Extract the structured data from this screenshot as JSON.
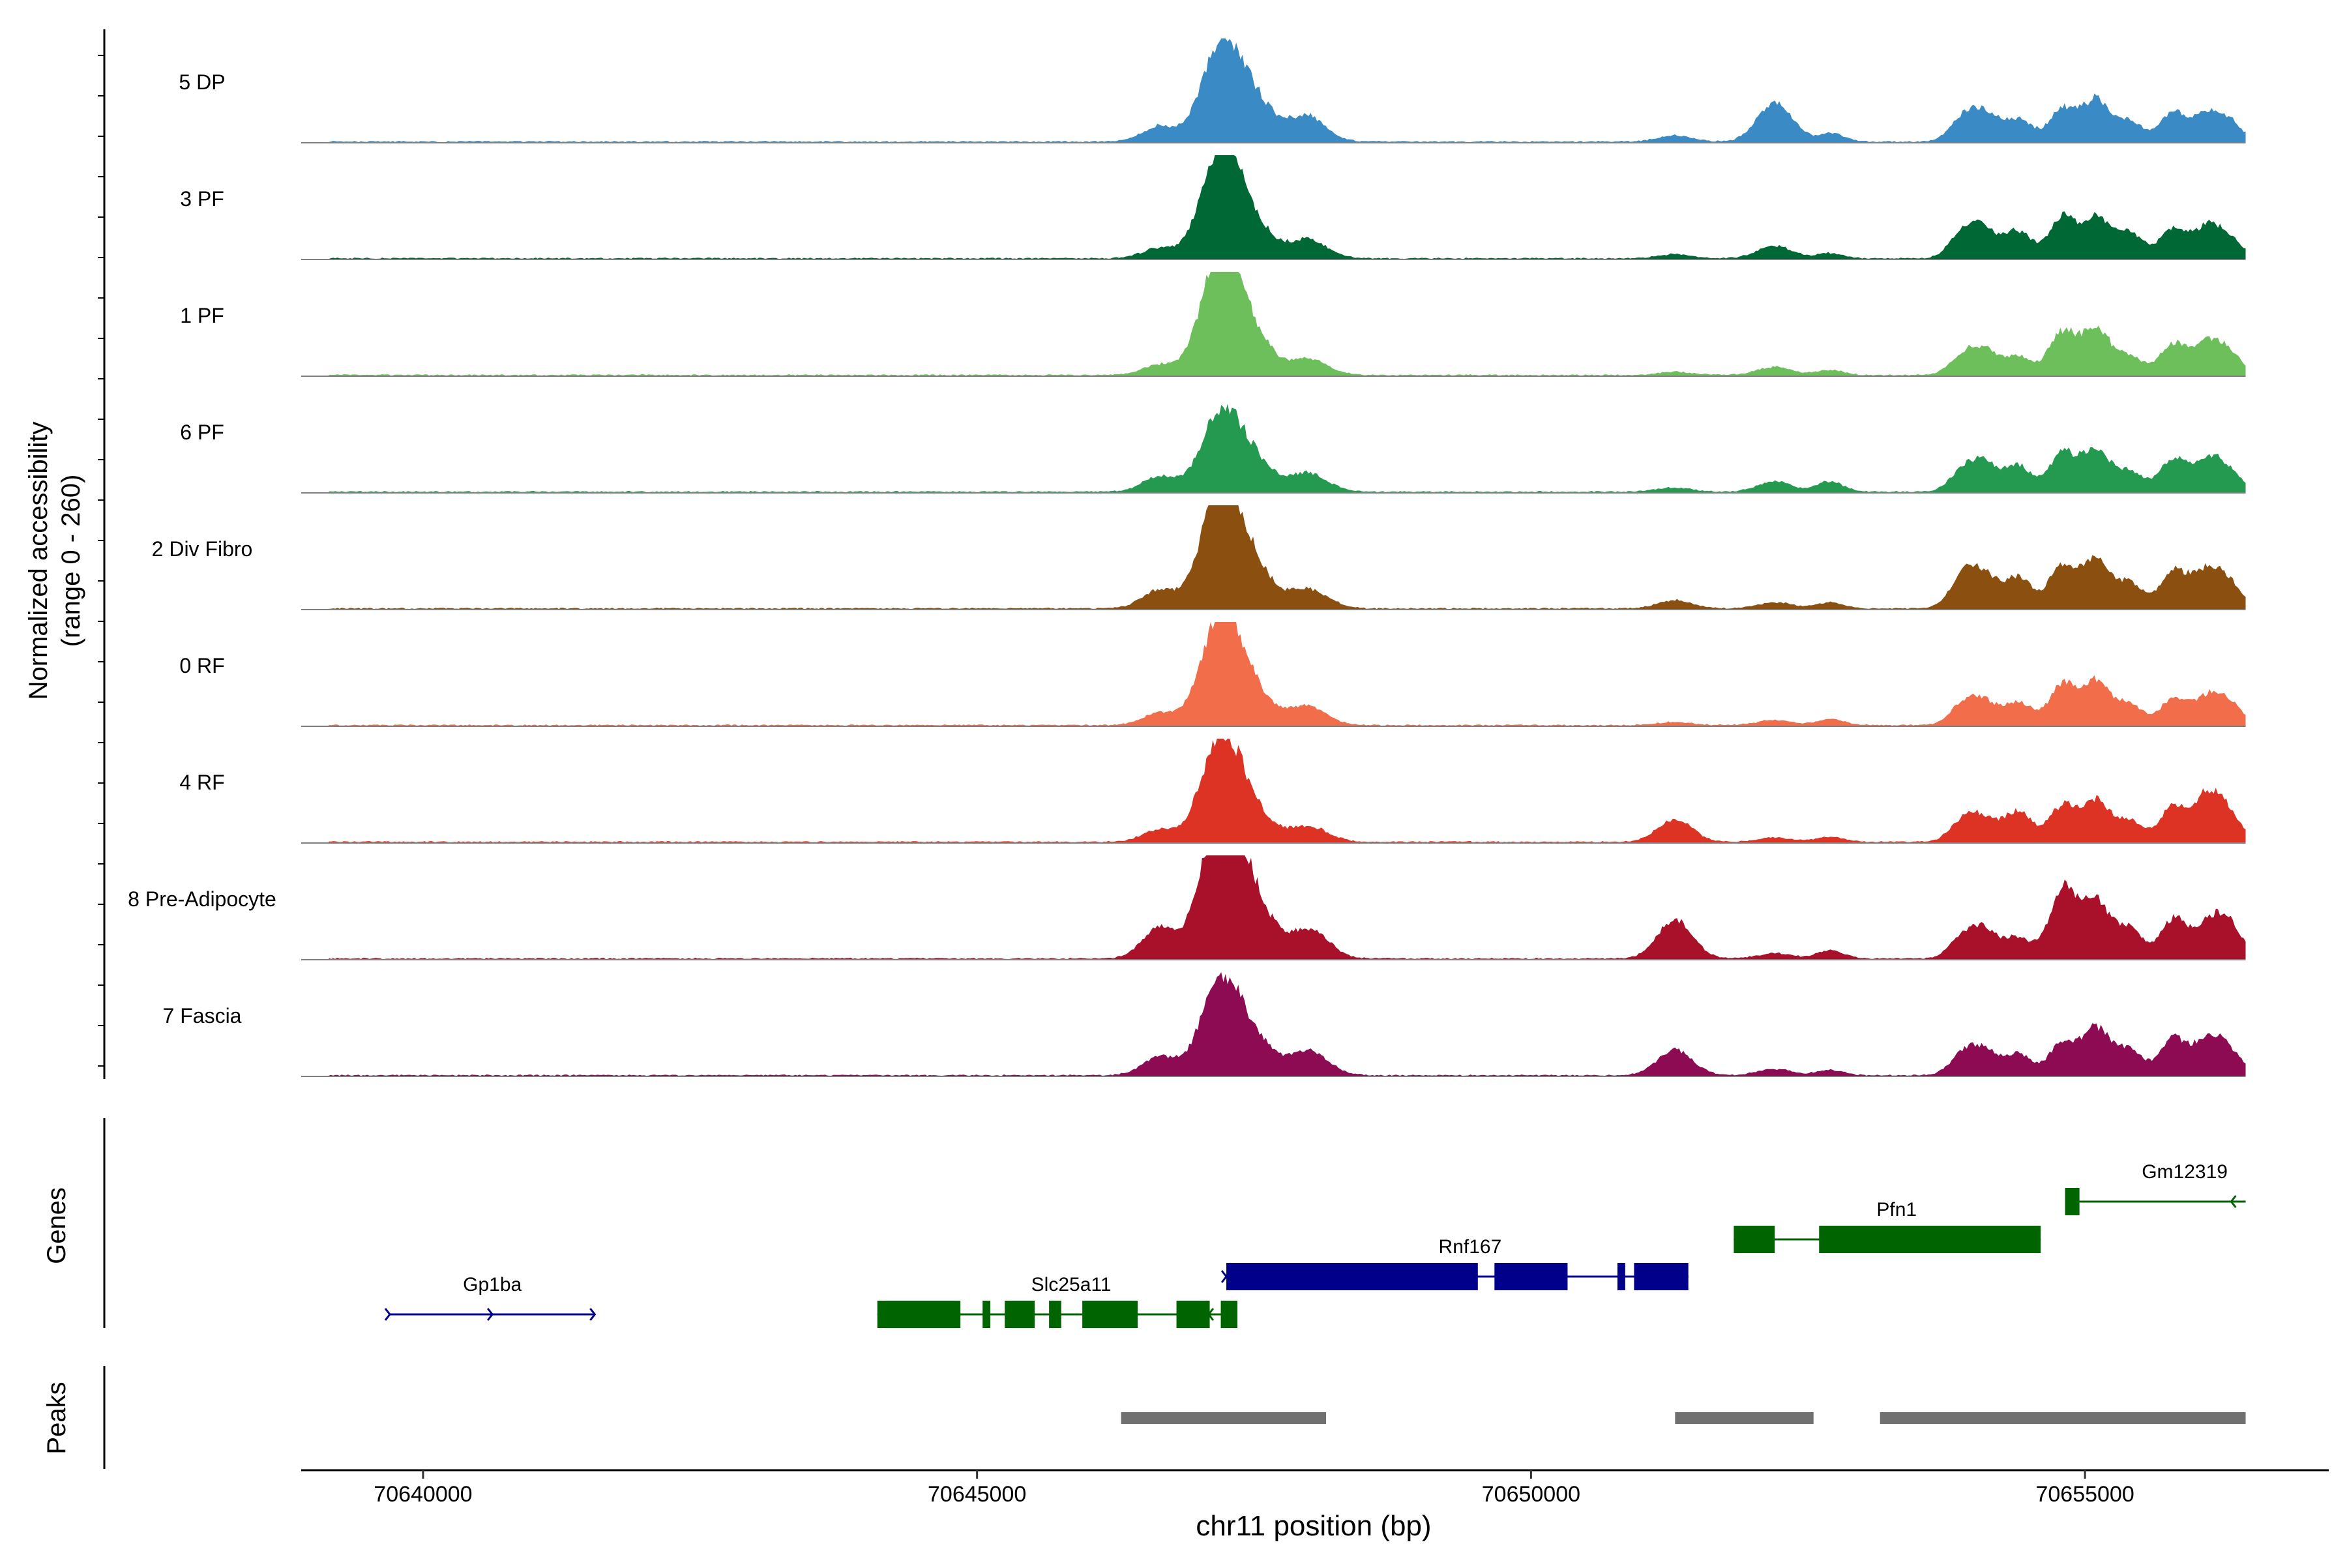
{
  "chart_data": {
    "type": "area",
    "title": "",
    "xlabel": "chr11 position (bp)",
    "ylabel_line1": "Normalized accessibility",
    "ylabel_line2": "(range 0 - 260)",
    "y_range": [
      0,
      260
    ],
    "x_range": [
      70638900,
      70657200
    ],
    "data_x_range": [
      70639150,
      70656450
    ],
    "x_ticks": [
      70640000,
      70645000,
      70650000,
      70655000
    ],
    "x_tick_labels": [
      "70640000",
      "70645000",
      "70650000",
      "70655000"
    ],
    "peak_centers_bp": [
      70646650,
      70647130,
      70647300,
      70647550,
      70647950,
      70648100,
      70652200,
      70651300,
      70652700,
      70653900,
      70654100,
      70654400,
      70654800,
      70655100,
      70655400,
      70655800,
      70656100,
      70656300
    ],
    "tracks": [
      {
        "name": "5 DP",
        "color": "#3a8ac5",
        "heights": [
          0.15,
          0.55,
          0.6,
          0.3,
          0.22,
          0.05,
          0.38,
          0.06,
          0.08,
          0.22,
          0.25,
          0.22,
          0.32,
          0.4,
          0.2,
          0.28,
          0.25,
          0.18
        ]
      },
      {
        "name": "3 PF",
        "color": "#006834",
        "heights": [
          0.1,
          0.62,
          0.66,
          0.22,
          0.15,
          0.05,
          0.12,
          0.04,
          0.05,
          0.25,
          0.24,
          0.26,
          0.4,
          0.38,
          0.25,
          0.3,
          0.28,
          0.18
        ]
      },
      {
        "name": "1 PF",
        "color": "#6cbf5b",
        "heights": [
          0.1,
          0.7,
          0.7,
          0.25,
          0.12,
          0.05,
          0.08,
          0.03,
          0.05,
          0.18,
          0.22,
          0.18,
          0.42,
          0.45,
          0.18,
          0.3,
          0.28,
          0.2
        ]
      },
      {
        "name": "6 PF",
        "color": "#239a4f",
        "heights": [
          0.15,
          0.45,
          0.48,
          0.22,
          0.14,
          0.06,
          0.1,
          0.04,
          0.1,
          0.2,
          0.25,
          0.25,
          0.38,
          0.4,
          0.2,
          0.32,
          0.3,
          0.18
        ]
      },
      {
        "name": "2 Div Fibro",
        "color": "#8b4f0f",
        "heights": [
          0.18,
          0.7,
          0.72,
          0.28,
          0.15,
          0.06,
          0.06,
          0.08,
          0.06,
          0.3,
          0.28,
          0.3,
          0.42,
          0.45,
          0.25,
          0.38,
          0.35,
          0.22
        ]
      },
      {
        "name": "0 RF",
        "color": "#f26e4a",
        "heights": [
          0.12,
          0.62,
          0.65,
          0.22,
          0.15,
          0.05,
          0.05,
          0.03,
          0.06,
          0.2,
          0.2,
          0.22,
          0.4,
          0.42,
          0.2,
          0.25,
          0.25,
          0.2
        ]
      },
      {
        "name": "4 RF",
        "color": "#dc3325",
        "heights": [
          0.12,
          0.62,
          0.6,
          0.2,
          0.12,
          0.05,
          0.04,
          0.22,
          0.05,
          0.2,
          0.2,
          0.3,
          0.35,
          0.4,
          0.2,
          0.35,
          0.42,
          0.25
        ]
      },
      {
        "name": "8 Pre-Adipocyte",
        "color": "#a9102a",
        "heights": [
          0.3,
          0.85,
          0.88,
          0.4,
          0.22,
          0.1,
          0.05,
          0.38,
          0.08,
          0.2,
          0.25,
          0.2,
          0.68,
          0.55,
          0.3,
          0.38,
          0.3,
          0.32
        ]
      },
      {
        "name": "7 Fascia",
        "color": "#8c0b52",
        "heights": [
          0.18,
          0.55,
          0.55,
          0.25,
          0.18,
          0.08,
          0.06,
          0.25,
          0.05,
          0.2,
          0.22,
          0.2,
          0.32,
          0.45,
          0.25,
          0.35,
          0.32,
          0.22
        ]
      }
    ],
    "genes_label": "Genes",
    "peaks_label": "Peaks",
    "gene_color_plus": "#00008b",
    "gene_color_minus": "#006400",
    "genes": [
      {
        "name": "Gp1ba",
        "strand": "+",
        "start": 70639700,
        "end": 70641550,
        "exons": [],
        "level": 0
      },
      {
        "name": "Slc25a11",
        "strand": "-",
        "start": 70644100,
        "end": 70647350,
        "exons": [
          [
            70644100,
            70644850
          ],
          [
            70645050,
            70645120
          ],
          [
            70645250,
            70645520
          ],
          [
            70645650,
            70645760
          ],
          [
            70645950,
            70646450
          ],
          [
            70646800,
            70647100
          ],
          [
            70647200,
            70647350
          ]
        ],
        "level": 0
      },
      {
        "name": "Rnf167",
        "strand": "+",
        "start": 70647250,
        "end": 70651420,
        "exons": [
          [
            70647250,
            70649520
          ],
          [
            70649670,
            70650330
          ],
          [
            70650780,
            70650850
          ],
          [
            70650930,
            70651420
          ]
        ],
        "level": 1
      },
      {
        "name": "Pfn1",
        "strand": "-",
        "start": 70651830,
        "end": 70654600,
        "exons": [
          [
            70651830,
            70652200
          ],
          [
            70652600,
            70654600
          ]
        ],
        "level": 2
      },
      {
        "name": "Gm12319",
        "strand": "-",
        "start": 70654820,
        "end": 70656450,
        "exons": [
          [
            70654820,
            70654950
          ]
        ],
        "level": 3
      }
    ],
    "peaks": [
      [
        70646300,
        70648150
      ],
      [
        70651300,
        70652550
      ],
      [
        70653150,
        70656450
      ]
    ]
  }
}
